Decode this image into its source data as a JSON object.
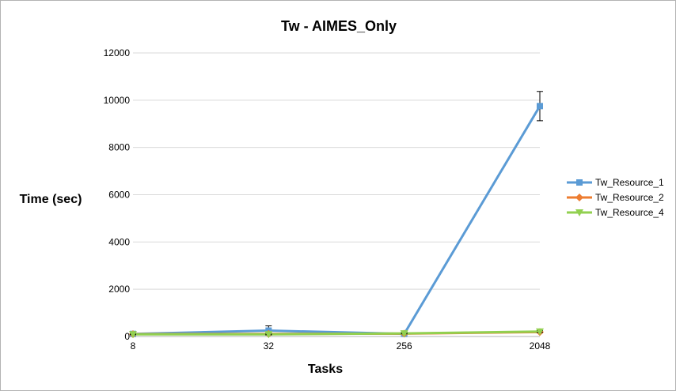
{
  "chart_data": {
    "type": "line",
    "title": "Tw - AIMES_Only",
    "xlabel": "Tasks",
    "ylabel": "Time (sec)",
    "categories": [
      "8",
      "32",
      "256",
      "2048"
    ],
    "ylim": [
      0,
      12000
    ],
    "yticks": [
      0,
      2000,
      4000,
      6000,
      8000,
      10000,
      12000
    ],
    "grid": true,
    "legend_position": "right",
    "series": [
      {
        "name": "Tw_Resource_1",
        "color": "#5b9bd5",
        "marker": "square",
        "values": [
          110,
          250,
          110,
          9750
        ],
        "error": [
          30,
          200,
          40,
          620
        ]
      },
      {
        "name": "Tw_Resource_2",
        "color": "#ed7d31",
        "marker": "diamond",
        "values": [
          100,
          110,
          120,
          190
        ],
        "error": [
          15,
          20,
          20,
          30
        ]
      },
      {
        "name": "Tw_Resource_4",
        "color": "#92d050",
        "marker": "triangle-down",
        "values": [
          90,
          90,
          130,
          210
        ],
        "error": [
          15,
          15,
          20,
          40
        ]
      }
    ]
  }
}
